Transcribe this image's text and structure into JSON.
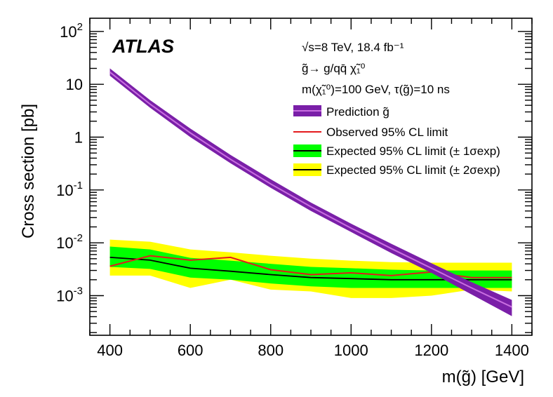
{
  "chart_data": {
    "type": "line",
    "title": "",
    "experiment_label": "ATLAS",
    "xlabel": "m(g̃) [GeV]",
    "ylabel": "Cross section [pb]",
    "xlim": [
      350,
      1450
    ],
    "ylim_log10": [
      -3.75,
      2.25
    ],
    "yscale": "log",
    "x_ticks": [
      400,
      600,
      800,
      1000,
      1200,
      1400
    ],
    "x_tick_labels": [
      "400",
      "600",
      "800",
      "1000",
      "1200",
      "1400"
    ],
    "y_tick_labels": [
      {
        "exp": 2,
        "text": "10",
        "sup": "2"
      },
      {
        "exp": 1,
        "text": "10",
        "sup": ""
      },
      {
        "exp": 0,
        "text": "1",
        "sup": ""
      },
      {
        "exp": -1,
        "text": "10",
        "sup": "-1"
      },
      {
        "exp": -2,
        "text": "10",
        "sup": "-2"
      },
      {
        "exp": -3,
        "text": "10",
        "sup": "-3"
      }
    ],
    "annotations": [
      "√s=8 TeV, 18.4 fb⁻¹",
      "g̃→ g/qq̄ χ̃₁⁰",
      "m(χ̃₁⁰)=100 GeV, τ(g̃)=10 ns"
    ],
    "legend": [
      {
        "key": "prediction",
        "label": "Prediction g̃"
      },
      {
        "key": "observed",
        "label": "Observed 95% CL limit"
      },
      {
        "key": "expected1",
        "label": "Expected 95% CL limit (± 1σexp)"
      },
      {
        "key": "expected2",
        "label": "Expected 95% CL limit (± 2σexp)"
      }
    ],
    "colors": {
      "prediction_band": "#7a1fa8",
      "prediction_line": "#c86ee0",
      "observed": "#e41a1c",
      "expected": "#000000",
      "band1": "#00ff00",
      "band2": "#ffff00"
    },
    "x": [
      400,
      500,
      600,
      700,
      800,
      900,
      1000,
      1100,
      1200,
      1300,
      1400
    ],
    "series": [
      {
        "name": "Prediction g̃",
        "key": "prediction",
        "values": [
          17.0,
          4.2,
          1.2,
          0.38,
          0.13,
          0.048,
          0.019,
          0.0078,
          0.0033,
          0.0014,
          0.00061
        ],
        "band_up": [
          20.0,
          5.0,
          1.45,
          0.46,
          0.16,
          0.058,
          0.023,
          0.0096,
          0.0041,
          0.0018,
          0.00083
        ],
        "band_dn": [
          14.5,
          3.6,
          1.0,
          0.32,
          0.11,
          0.04,
          0.016,
          0.0064,
          0.0027,
          0.00105,
          0.00041
        ]
      },
      {
        "name": "Observed 95% CL limit",
        "key": "observed",
        "values": [
          0.0036,
          0.0057,
          0.0047,
          0.0053,
          0.0031,
          0.0025,
          0.0027,
          0.0024,
          0.0028,
          0.0022,
          0.0022
        ]
      },
      {
        "name": "Expected 95% CL limit",
        "key": "expected",
        "values": [
          0.0053,
          0.0047,
          0.0033,
          0.0029,
          0.0025,
          0.0022,
          0.0021,
          0.002,
          0.002,
          0.002,
          0.002
        ]
      },
      {
        "name": "Expected ±1σ",
        "key": "band1",
        "up": [
          0.0085,
          0.0075,
          0.0052,
          0.0046,
          0.004,
          0.0035,
          0.0033,
          0.0031,
          0.003,
          0.003,
          0.003
        ],
        "dn": [
          0.0035,
          0.0032,
          0.0022,
          0.002,
          0.0017,
          0.0015,
          0.0014,
          0.0014,
          0.0014,
          0.0014,
          0.0014
        ]
      },
      {
        "name": "Expected ±2σ",
        "key": "band2",
        "up": [
          0.0115,
          0.0105,
          0.0075,
          0.0066,
          0.0057,
          0.005,
          0.0046,
          0.0043,
          0.0042,
          0.0042,
          0.0042
        ],
        "dn": [
          0.0024,
          0.0024,
          0.0014,
          0.002,
          0.0013,
          0.0012,
          0.0009,
          0.0009,
          0.001,
          0.0013,
          0.0012
        ]
      }
    ]
  }
}
